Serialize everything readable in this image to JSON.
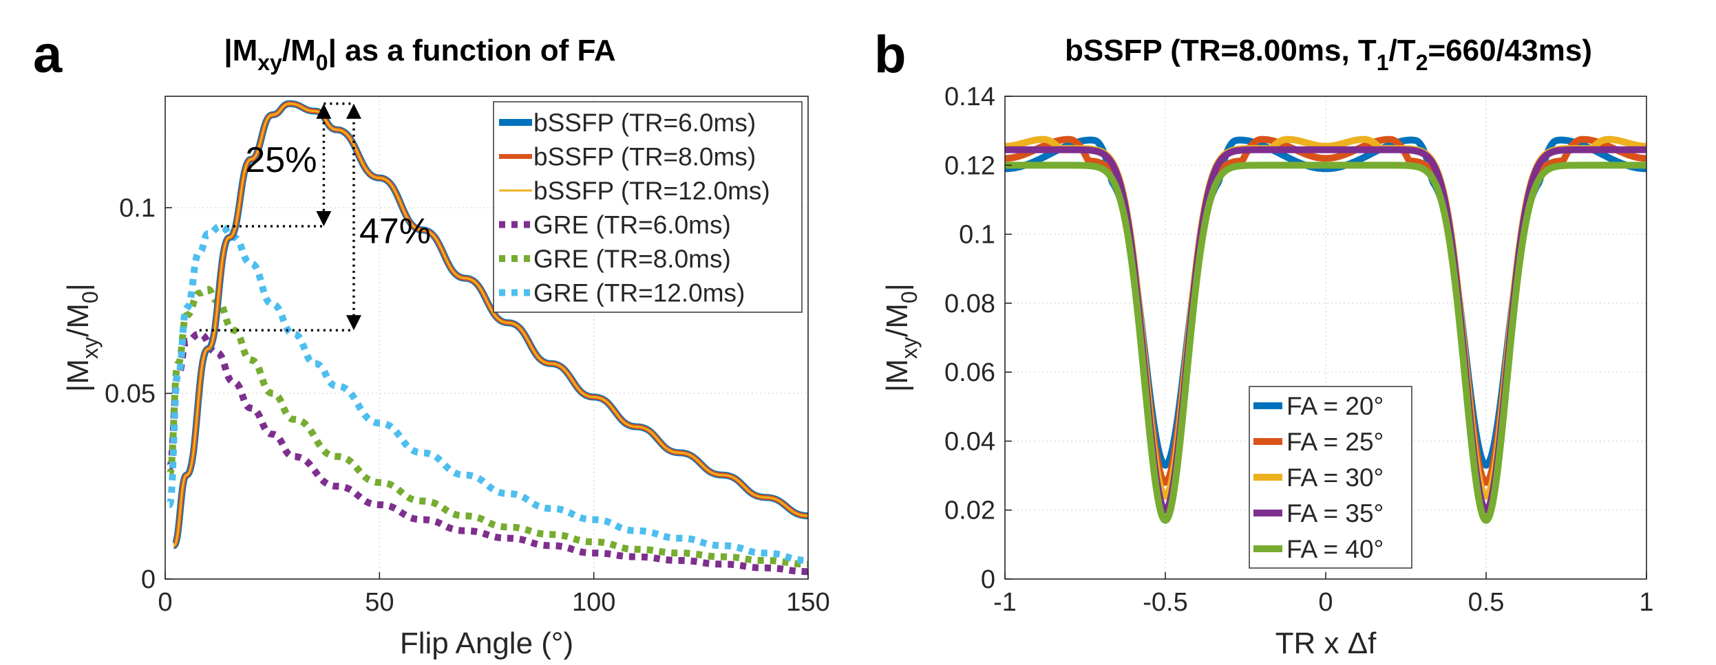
{
  "figure": {
    "panels": [
      "a",
      "b"
    ]
  },
  "chart_data": [
    {
      "panel_label": "a",
      "type": "line",
      "title": {
        "prefix": "|M",
        "sub1": "xy",
        "mid": "/M",
        "sub2": "0",
        "suffix": "| as a function of FA"
      },
      "xlabel": "Flip Angle (°)",
      "ylabel": {
        "prefix": "|M",
        "sub1": "xy",
        "mid": "/M",
        "sub2": "0",
        "suffix": "|"
      },
      "xlim": [
        0,
        150
      ],
      "ylim": [
        0,
        0.13
      ],
      "xticks": [
        0,
        50,
        100,
        150
      ],
      "xtick_labels": [
        "0",
        "50",
        "100",
        "150"
      ],
      "yticks": [
        0,
        0.05,
        0.1
      ],
      "ytick_labels": [
        "0",
        "0.05",
        "0.1"
      ],
      "grid": true,
      "legend_position": "top-right",
      "series": [
        {
          "name": "bSSFP (TR=6.0ms)",
          "color": "#0072bd",
          "style": "solid",
          "width": 10,
          "x": [
            2,
            5,
            10,
            15,
            20,
            25,
            29,
            35,
            40,
            50,
            60,
            70,
            80,
            90,
            100,
            110,
            120,
            130,
            140,
            150
          ],
          "y": [
            0.009,
            0.028,
            0.062,
            0.092,
            0.113,
            0.125,
            0.128,
            0.126,
            0.121,
            0.108,
            0.094,
            0.081,
            0.069,
            0.058,
            0.049,
            0.041,
            0.034,
            0.028,
            0.022,
            0.017
          ]
        },
        {
          "name": "bSSFP (TR=8.0ms)",
          "color": "#d95319",
          "style": "solid",
          "width": 7,
          "x": [
            2,
            5,
            10,
            15,
            20,
            25,
            29,
            35,
            40,
            50,
            60,
            70,
            80,
            90,
            100,
            110,
            120,
            130,
            140,
            150
          ],
          "y": [
            0.009,
            0.028,
            0.062,
            0.092,
            0.113,
            0.125,
            0.128,
            0.126,
            0.121,
            0.108,
            0.094,
            0.081,
            0.069,
            0.058,
            0.049,
            0.041,
            0.034,
            0.028,
            0.022,
            0.017
          ]
        },
        {
          "name": "bSSFP (TR=12.0ms)",
          "color": "#edb120",
          "style": "solid",
          "width": 3,
          "x": [
            2,
            5,
            10,
            15,
            20,
            25,
            29,
            35,
            40,
            50,
            60,
            70,
            80,
            90,
            100,
            110,
            120,
            130,
            140,
            150
          ],
          "y": [
            0.009,
            0.028,
            0.062,
            0.092,
            0.113,
            0.125,
            0.128,
            0.126,
            0.121,
            0.108,
            0.094,
            0.081,
            0.069,
            0.058,
            0.049,
            0.041,
            0.034,
            0.028,
            0.022,
            0.017
          ]
        },
        {
          "name": "GRE (TR=6.0ms)",
          "color": "#7e2f8e",
          "style": "dotted",
          "width": 10,
          "x": [
            1,
            3,
            5,
            8,
            12,
            16,
            20,
            25,
            30,
            40,
            50,
            60,
            70,
            80,
            90,
            100,
            110,
            120,
            130,
            140,
            150
          ],
          "y": [
            0.03,
            0.055,
            0.064,
            0.066,
            0.061,
            0.053,
            0.046,
            0.039,
            0.033,
            0.025,
            0.02,
            0.016,
            0.013,
            0.011,
            0.009,
            0.007,
            0.006,
            0.005,
            0.004,
            0.003,
            0.002
          ]
        },
        {
          "name": "GRE (TR=8.0ms)",
          "color": "#77ac30",
          "style": "dotted",
          "width": 10,
          "x": [
            1,
            3,
            5,
            8,
            10,
            12,
            16,
            20,
            25,
            30,
            40,
            50,
            60,
            70,
            80,
            90,
            100,
            110,
            120,
            130,
            140,
            150
          ],
          "y": [
            0.028,
            0.058,
            0.071,
            0.077,
            0.078,
            0.075,
            0.067,
            0.059,
            0.05,
            0.043,
            0.033,
            0.026,
            0.021,
            0.017,
            0.014,
            0.012,
            0.01,
            0.008,
            0.007,
            0.006,
            0.005,
            0.004
          ]
        },
        {
          "name": "GRE (TR=12.0ms)",
          "color": "#4dbeee",
          "style": "dotted",
          "width": 10,
          "x": [
            1,
            3,
            5,
            8,
            10,
            13,
            16,
            20,
            25,
            30,
            35,
            40,
            50,
            60,
            70,
            80,
            90,
            100,
            110,
            120,
            130,
            140,
            150
          ],
          "y": [
            0.02,
            0.055,
            0.073,
            0.088,
            0.093,
            0.095,
            0.092,
            0.085,
            0.074,
            0.066,
            0.058,
            0.052,
            0.042,
            0.034,
            0.028,
            0.023,
            0.019,
            0.016,
            0.013,
            0.011,
            0.009,
            0.007,
            0.005
          ]
        }
      ],
      "annotations": [
        {
          "text": "25%",
          "x": 37,
          "y_from": 0.128,
          "y_to": 0.095,
          "hline_from_x": 13
        },
        {
          "text": "47%",
          "x": 44,
          "y_from": 0.128,
          "y_to": 0.067,
          "hline_from_x": 8
        }
      ]
    },
    {
      "panel_label": "b",
      "type": "line",
      "title": {
        "prefix": "bSSFP (TR=8.00ms, T",
        "sub1": "1",
        "mid": "/T",
        "sub2": "2",
        "suffix": "=660/43ms)"
      },
      "xlabel": "TR x Δf",
      "ylabel": {
        "prefix": "|M",
        "sub1": "xy",
        "mid": "/M",
        "sub2": "0",
        "suffix": "|"
      },
      "xlim": [
        -1,
        1
      ],
      "ylim": [
        0,
        0.14
      ],
      "xticks": [
        -1,
        -0.5,
        0,
        0.5,
        1
      ],
      "xtick_labels": [
        "-1",
        "-0.5",
        "0",
        "0.5",
        "1"
      ],
      "yticks": [
        0,
        0.02,
        0.04,
        0.06,
        0.08,
        0.1,
        0.12,
        0.14
      ],
      "ytick_labels": [
        "0",
        "0.02",
        "0.04",
        "0.06",
        "0.08",
        "0.1",
        "0.12",
        "0.14"
      ],
      "grid": true,
      "legend_position": "bottom-center",
      "series": [
        {
          "name": "FA = 20°",
          "color": "#0072bd",
          "peak": 0.1275,
          "center": 0.119,
          "min": 0.033,
          "peak_offset": 0.22
        },
        {
          "name": "FA = 25°",
          "color": "#d95319",
          "peak": 0.1275,
          "center": 0.122,
          "min": 0.028,
          "peak_offset": 0.3
        },
        {
          "name": "FA = 30°",
          "color": "#edb120",
          "peak": 0.1275,
          "center": 0.1255,
          "min": 0.024,
          "peak_offset": 0.38
        },
        {
          "name": "FA = 35°",
          "color": "#7e2f8e",
          "peak": 0.1255,
          "center": 0.1245,
          "min": 0.02,
          "peak_offset": 0.5
        },
        {
          "name": "FA = 40°",
          "color": "#77ac30",
          "peak": 0.12,
          "center": 0.12,
          "min": 0.017,
          "peak_offset": 0.5
        }
      ]
    }
  ]
}
